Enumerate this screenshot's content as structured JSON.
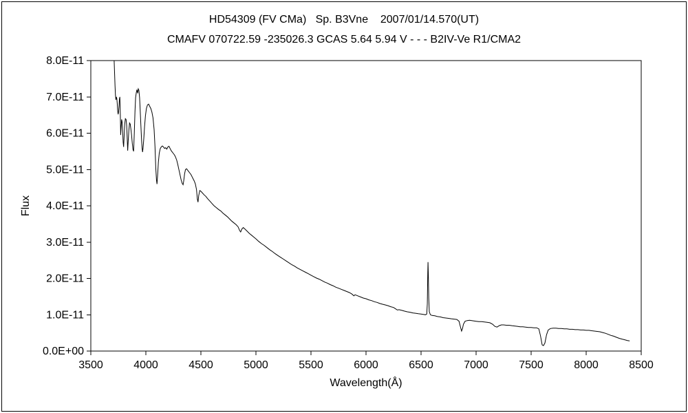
{
  "titles": {
    "line1": "HD54309 (FV CMa)   Sp. B3Vne    2007/01/14.570(UT)",
    "line2": "CMAFV 070722.59 -235026.3 GCAS 5.64 5.94 V - - - B2IV-Ve R1/CMA2"
  },
  "chart_data": {
    "type": "line",
    "title": "HD54309 (FV CMa)   Sp. B3Vne    2007/01/14.570(UT)",
    "subtitle": "CMAFV 070722.59 -235026.3 GCAS 5.64 5.94 V - - - B2IV-Ve R1/CMA2",
    "xlabel": "Wavelength(Å)",
    "ylabel": "Flux",
    "xlim": [
      3500,
      8500
    ],
    "x_ticks": [
      3500,
      4000,
      4500,
      5000,
      5500,
      6000,
      6500,
      7000,
      7500,
      8000,
      8500
    ],
    "y_unit_scale": "1E-11",
    "ylim_e11": [
      0,
      8
    ],
    "y_ticks": [
      {
        "v": 0,
        "label": "0.0E+00"
      },
      {
        "v": 1,
        "label": "1.0E-11"
      },
      {
        "v": 2,
        "label": "2.0E-11"
      },
      {
        "v": 3,
        "label": "3.0E-11"
      },
      {
        "v": 4,
        "label": "4.0E-11"
      },
      {
        "v": 5,
        "label": "5.0E-11"
      },
      {
        "v": 6,
        "label": "6.0E-11"
      },
      {
        "v": 7,
        "label": "7.0E-11"
      },
      {
        "v": 8,
        "label": "8.0E-11"
      }
    ],
    "grid": false,
    "legend": "none",
    "line_color": "#000000",
    "series": [
      {
        "name": "HD54309 spectrum",
        "points": [
          [
            3712,
            8.0
          ],
          [
            3716,
            7.62
          ],
          [
            3720,
            7.3
          ],
          [
            3724,
            7.05
          ],
          [
            3728,
            6.92
          ],
          [
            3732,
            7.0
          ],
          [
            3736,
            6.95
          ],
          [
            3740,
            6.82
          ],
          [
            3744,
            6.62
          ],
          [
            3748,
            6.52
          ],
          [
            3752,
            6.58
          ],
          [
            3756,
            6.75
          ],
          [
            3760,
            6.95
          ],
          [
            3764,
            7.0
          ],
          [
            3768,
            6.5
          ],
          [
            3771,
            5.95
          ],
          [
            3775,
            6.15
          ],
          [
            3780,
            6.38
          ],
          [
            3785,
            6.3
          ],
          [
            3790,
            6.0
          ],
          [
            3794,
            5.75
          ],
          [
            3798,
            5.62
          ],
          [
            3803,
            5.95
          ],
          [
            3808,
            6.25
          ],
          [
            3814,
            6.4
          ],
          [
            3820,
            6.38
          ],
          [
            3826,
            6.2
          ],
          [
            3831,
            5.8
          ],
          [
            3835,
            5.52
          ],
          [
            3840,
            5.8
          ],
          [
            3846,
            6.1
          ],
          [
            3852,
            6.28
          ],
          [
            3858,
            6.25
          ],
          [
            3864,
            6.12
          ],
          [
            3870,
            5.95
          ],
          [
            3877,
            5.72
          ],
          [
            3883,
            5.55
          ],
          [
            3889,
            5.5
          ],
          [
            3895,
            6.0
          ],
          [
            3901,
            6.6
          ],
          [
            3907,
            6.98
          ],
          [
            3913,
            7.12
          ],
          [
            3919,
            7.2
          ],
          [
            3925,
            7.1
          ],
          [
            3931,
            7.22
          ],
          [
            3937,
            7.18
          ],
          [
            3943,
            6.98
          ],
          [
            3949,
            6.62
          ],
          [
            3955,
            6.2
          ],
          [
            3961,
            5.8
          ],
          [
            3966,
            5.58
          ],
          [
            3970,
            5.48
          ],
          [
            3975,
            5.6
          ],
          [
            3981,
            5.85
          ],
          [
            3988,
            6.18
          ],
          [
            3996,
            6.48
          ],
          [
            4005,
            6.68
          ],
          [
            4015,
            6.78
          ],
          [
            4025,
            6.8
          ],
          [
            4035,
            6.74
          ],
          [
            4045,
            6.68
          ],
          [
            4055,
            6.58
          ],
          [
            4065,
            6.42
          ],
          [
            4075,
            6.1
          ],
          [
            4083,
            5.62
          ],
          [
            4090,
            5.05
          ],
          [
            4096,
            4.72
          ],
          [
            4101,
            4.6
          ],
          [
            4107,
            4.85
          ],
          [
            4114,
            5.2
          ],
          [
            4122,
            5.45
          ],
          [
            4131,
            5.58
          ],
          [
            4140,
            5.62
          ],
          [
            4150,
            5.65
          ],
          [
            4160,
            5.62
          ],
          [
            4170,
            5.58
          ],
          [
            4180,
            5.6
          ],
          [
            4190,
            5.56
          ],
          [
            4200,
            5.62
          ],
          [
            4210,
            5.64
          ],
          [
            4220,
            5.58
          ],
          [
            4230,
            5.52
          ],
          [
            4240,
            5.48
          ],
          [
            4250,
            5.44
          ],
          [
            4260,
            5.4
          ],
          [
            4270,
            5.34
          ],
          [
            4280,
            5.26
          ],
          [
            4290,
            5.14
          ],
          [
            4300,
            5.0
          ],
          [
            4310,
            4.86
          ],
          [
            4320,
            4.72
          ],
          [
            4330,
            4.62
          ],
          [
            4338,
            4.58
          ],
          [
            4344,
            4.68
          ],
          [
            4352,
            4.88
          ],
          [
            4360,
            5.0
          ],
          [
            4370,
            5.02
          ],
          [
            4380,
            4.98
          ],
          [
            4390,
            4.94
          ],
          [
            4400,
            4.9
          ],
          [
            4410,
            4.86
          ],
          [
            4420,
            4.8
          ],
          [
            4430,
            4.74
          ],
          [
            4440,
            4.68
          ],
          [
            4450,
            4.6
          ],
          [
            4460,
            4.45
          ],
          [
            4468,
            4.18
          ],
          [
            4474,
            4.1
          ],
          [
            4480,
            4.28
          ],
          [
            4490,
            4.42
          ],
          [
            4500,
            4.4
          ],
          [
            4515,
            4.35
          ],
          [
            4530,
            4.3
          ],
          [
            4545,
            4.26
          ],
          [
            4560,
            4.2
          ],
          [
            4575,
            4.15
          ],
          [
            4590,
            4.1
          ],
          [
            4605,
            4.05
          ],
          [
            4620,
            4.0
          ],
          [
            4640,
            3.95
          ],
          [
            4660,
            3.9
          ],
          [
            4680,
            3.86
          ],
          [
            4700,
            3.8
          ],
          [
            4720,
            3.75
          ],
          [
            4740,
            3.7
          ],
          [
            4760,
            3.64
          ],
          [
            4780,
            3.58
          ],
          [
            4800,
            3.53
          ],
          [
            4820,
            3.48
          ],
          [
            4838,
            3.42
          ],
          [
            4852,
            3.32
          ],
          [
            4861,
            3.28
          ],
          [
            4872,
            3.36
          ],
          [
            4885,
            3.4
          ],
          [
            4900,
            3.36
          ],
          [
            4920,
            3.3
          ],
          [
            4940,
            3.24
          ],
          [
            4960,
            3.19
          ],
          [
            4980,
            3.14
          ],
          [
            5000,
            3.09
          ],
          [
            5025,
            3.02
          ],
          [
            5050,
            2.96
          ],
          [
            5075,
            2.91
          ],
          [
            5100,
            2.85
          ],
          [
            5125,
            2.79
          ],
          [
            5150,
            2.74
          ],
          [
            5175,
            2.68
          ],
          [
            5200,
            2.63
          ],
          [
            5225,
            2.58
          ],
          [
            5250,
            2.53
          ],
          [
            5275,
            2.48
          ],
          [
            5300,
            2.43
          ],
          [
            5325,
            2.38
          ],
          [
            5350,
            2.34
          ],
          [
            5375,
            2.29
          ],
          [
            5400,
            2.25
          ],
          [
            5425,
            2.21
          ],
          [
            5450,
            2.17
          ],
          [
            5475,
            2.13
          ],
          [
            5500,
            2.09
          ],
          [
            5525,
            2.05
          ],
          [
            5550,
            2.01
          ],
          [
            5575,
            1.98
          ],
          [
            5600,
            1.94
          ],
          [
            5625,
            1.9
          ],
          [
            5650,
            1.87
          ],
          [
            5675,
            1.83
          ],
          [
            5700,
            1.8
          ],
          [
            5725,
            1.76
          ],
          [
            5750,
            1.73
          ],
          [
            5775,
            1.7
          ],
          [
            5800,
            1.67
          ],
          [
            5825,
            1.64
          ],
          [
            5850,
            1.61
          ],
          [
            5872,
            1.57
          ],
          [
            5890,
            1.52
          ],
          [
            5900,
            1.55
          ],
          [
            5925,
            1.52
          ],
          [
            5950,
            1.49
          ],
          [
            5975,
            1.46
          ],
          [
            6000,
            1.44
          ],
          [
            6025,
            1.41
          ],
          [
            6050,
            1.39
          ],
          [
            6075,
            1.36
          ],
          [
            6100,
            1.34
          ],
          [
            6125,
            1.31
          ],
          [
            6150,
            1.29
          ],
          [
            6175,
            1.27
          ],
          [
            6200,
            1.25
          ],
          [
            6225,
            1.22
          ],
          [
            6250,
            1.2
          ],
          [
            6270,
            1.16
          ],
          [
            6285,
            1.13
          ],
          [
            6300,
            1.14
          ],
          [
            6325,
            1.12
          ],
          [
            6350,
            1.1
          ],
          [
            6375,
            1.08
          ],
          [
            6400,
            1.07
          ],
          [
            6425,
            1.05
          ],
          [
            6450,
            1.04
          ],
          [
            6475,
            1.03
          ],
          [
            6500,
            1.02
          ],
          [
            6520,
            1.01
          ],
          [
            6540,
            1.0
          ],
          [
            6552,
            1.02
          ],
          [
            6557,
            1.3
          ],
          [
            6560,
            1.95
          ],
          [
            6563,
            2.45
          ],
          [
            6566,
            2.1
          ],
          [
            6570,
            1.45
          ],
          [
            6575,
            1.08
          ],
          [
            6585,
            1.0
          ],
          [
            6600,
            0.98
          ],
          [
            6625,
            0.97
          ],
          [
            6650,
            0.95
          ],
          [
            6675,
            0.94
          ],
          [
            6700,
            0.92
          ],
          [
            6725,
            0.91
          ],
          [
            6750,
            0.9
          ],
          [
            6775,
            0.89
          ],
          [
            6800,
            0.88
          ],
          [
            6825,
            0.87
          ],
          [
            6845,
            0.82
          ],
          [
            6860,
            0.64
          ],
          [
            6868,
            0.55
          ],
          [
            6876,
            0.62
          ],
          [
            6885,
            0.74
          ],
          [
            6900,
            0.82
          ],
          [
            6920,
            0.84
          ],
          [
            6940,
            0.85
          ],
          [
            6960,
            0.84
          ],
          [
            6980,
            0.83
          ],
          [
            7000,
            0.82
          ],
          [
            7025,
            0.81
          ],
          [
            7050,
            0.81
          ],
          [
            7075,
            0.8
          ],
          [
            7100,
            0.79
          ],
          [
            7125,
            0.78
          ],
          [
            7150,
            0.74
          ],
          [
            7170,
            0.68
          ],
          [
            7190,
            0.66
          ],
          [
            7210,
            0.7
          ],
          [
            7230,
            0.72
          ],
          [
            7250,
            0.72
          ],
          [
            7275,
            0.71
          ],
          [
            7300,
            0.71
          ],
          [
            7325,
            0.7
          ],
          [
            7350,
            0.69
          ],
          [
            7375,
            0.68
          ],
          [
            7400,
            0.67
          ],
          [
            7425,
            0.67
          ],
          [
            7450,
            0.66
          ],
          [
            7475,
            0.65
          ],
          [
            7500,
            0.65
          ],
          [
            7525,
            0.64
          ],
          [
            7550,
            0.64
          ],
          [
            7570,
            0.61
          ],
          [
            7585,
            0.42
          ],
          [
            7600,
            0.17
          ],
          [
            7612,
            0.15
          ],
          [
            7625,
            0.22
          ],
          [
            7640,
            0.45
          ],
          [
            7655,
            0.58
          ],
          [
            7675,
            0.62
          ],
          [
            7700,
            0.63
          ],
          [
            7725,
            0.63
          ],
          [
            7750,
            0.62
          ],
          [
            7775,
            0.62
          ],
          [
            7800,
            0.61
          ],
          [
            7825,
            0.61
          ],
          [
            7850,
            0.6
          ],
          [
            7875,
            0.6
          ],
          [
            7900,
            0.59
          ],
          [
            7925,
            0.59
          ],
          [
            7950,
            0.58
          ],
          [
            7975,
            0.58
          ],
          [
            8000,
            0.57
          ],
          [
            8025,
            0.57
          ],
          [
            8050,
            0.56
          ],
          [
            8075,
            0.55
          ],
          [
            8100,
            0.54
          ],
          [
            8125,
            0.53
          ],
          [
            8150,
            0.51
          ],
          [
            8175,
            0.49
          ],
          [
            8200,
            0.46
          ],
          [
            8225,
            0.43
          ],
          [
            8250,
            0.41
          ],
          [
            8275,
            0.38
          ],
          [
            8300,
            0.35
          ],
          [
            8325,
            0.33
          ],
          [
            8350,
            0.31
          ],
          [
            8375,
            0.29
          ],
          [
            8395,
            0.28
          ]
        ]
      }
    ]
  }
}
